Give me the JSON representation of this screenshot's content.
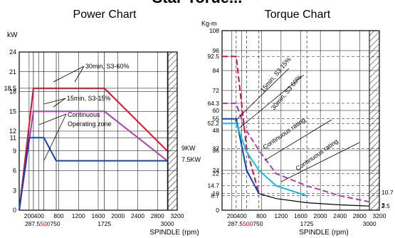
{
  "page": {
    "top_title_partial": "Star Torue..."
  },
  "chart_data": [
    {
      "type": "line",
      "title": "Power Chart",
      "ylabel": "kW",
      "xlabel": "SPINDLE (rpm)",
      "xlim": [
        0,
        3200
      ],
      "ylim": [
        0,
        24
      ],
      "x_ticks": [
        200,
        400,
        800,
        1200,
        1600,
        2000,
        2400,
        2800,
        3200
      ],
      "y_ticks": [
        0,
        3,
        6,
        9,
        11,
        12,
        15,
        18,
        18.5,
        21,
        24
      ],
      "extra_x_labels": [
        {
          "text": "287.5",
          "x": 287.5,
          "color": "#000000"
        },
        {
          "text": "500",
          "x": 500,
          "color": "#dd0000"
        },
        {
          "text": "750",
          "x": 750,
          "color": "#000000"
        },
        {
          "text": "1725",
          "x": 1725,
          "color": "#000000"
        },
        {
          "text": "3000",
          "x": 3000,
          "color": "#000000"
        }
      ],
      "series": [
        {
          "color": "#dd1133",
          "dash": "solid",
          "points": [
            [
              0,
              0
            ],
            [
              287.5,
              18.5
            ],
            [
              1725,
              18.5
            ],
            [
              3000,
              9
            ]
          ]
        },
        {
          "color": "#aa44aa",
          "dash": "solid",
          "points": [
            [
              0,
              0
            ],
            [
              287.5,
              15
            ],
            [
              1725,
              15
            ],
            [
              3000,
              7.5
            ]
          ]
        },
        {
          "color": "#1144bb",
          "dash": "solid",
          "points": [
            [
              0,
              0
            ],
            [
              200,
              11
            ],
            [
              500,
              11
            ],
            [
              750,
              7.5
            ],
            [
              3000,
              7.5
            ]
          ]
        }
      ],
      "annotations": [
        {
          "text": "30min, S3-60%"
        },
        {
          "text": "15min, S3-15%"
        },
        {
          "text": "Continuous"
        },
        {
          "text": "Operating zone"
        },
        {
          "text": "9KW"
        },
        {
          "text": "7.5KW"
        }
      ],
      "grid": true
    },
    {
      "type": "line",
      "title": "Torque Chart",
      "ylabel": "Kg-m",
      "xlabel": "SPINDLE (rpm)",
      "xlim": [
        0,
        3200
      ],
      "ylim": [
        0,
        108
      ],
      "x_ticks": [
        200,
        400,
        800,
        1200,
        1600,
        2000,
        2400,
        2800,
        3200
      ],
      "y_ticks_left": [
        0,
        8.7,
        10,
        14.7,
        22,
        24,
        36,
        37,
        48,
        52.2,
        55,
        60,
        64.3,
        72,
        84,
        92.5,
        96,
        108
      ],
      "y_ticks_right": [
        2.5,
        3,
        10.7
      ],
      "extra_x_labels": [
        {
          "text": "287.5",
          "x": 287.5,
          "color": "#000000"
        },
        {
          "text": "500",
          "x": 500,
          "color": "#dd0000"
        },
        {
          "text": "750",
          "x": 750,
          "color": "#000000"
        },
        {
          "text": "1725",
          "x": 1725,
          "color": "#000000"
        },
        {
          "text": "3000",
          "x": 3000,
          "color": "#000000"
        }
      ],
      "series": [
        {
          "color": "#dd1133",
          "dash": "8,4",
          "points": [
            [
              0,
              92.5
            ],
            [
              287.5,
              92.5
            ],
            [
              500,
              37
            ],
            [
              750,
              10
            ]
          ]
        },
        {
          "color": "#aa44aa",
          "dash": "8,4",
          "points": [
            [
              0,
              64.3
            ],
            [
              287.5,
              64.3
            ],
            [
              450,
              50
            ],
            [
              750,
              36
            ],
            [
              1100,
              22
            ],
            [
              1725,
              14.7
            ],
            [
              2400,
              8.7
            ],
            [
              3000,
              5
            ]
          ]
        },
        {
          "color": "#1144bb",
          "dash": "solid",
          "points": [
            [
              0,
              55
            ],
            [
              287.5,
              55
            ],
            [
              500,
              24
            ],
            [
              750,
              10
            ]
          ]
        },
        {
          "color": "#11bbdd",
          "dash": "solid",
          "points": [
            [
              0,
              52.2
            ],
            [
              287.5,
              52.2
            ],
            [
              500,
              35
            ],
            [
              750,
              24
            ],
            [
              1100,
              14.7
            ],
            [
              1725,
              8.7
            ]
          ]
        },
        {
          "color": "#000000",
          "dash": "solid",
          "points": [
            [
              750,
              10
            ],
            [
              1100,
              7
            ],
            [
              1725,
              4.5
            ],
            [
              2400,
              3.2
            ],
            [
              3000,
              2.5
            ]
          ]
        }
      ],
      "annotations": [
        {
          "text": "15min, S3 15%"
        },
        {
          "text": "30min, S3 60%"
        },
        {
          "text": "Continuous rating"
        },
        {
          "text": "Continuous rating"
        }
      ],
      "grid": true
    }
  ]
}
